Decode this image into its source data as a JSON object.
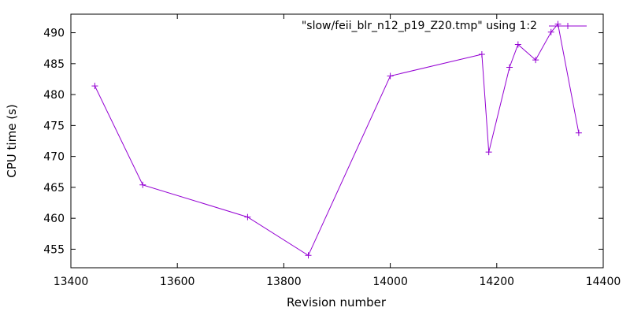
{
  "chart_data": {
    "type": "line",
    "xlabel": "Revision number",
    "ylabel": "CPU time (s)",
    "xlim": [
      13400,
      14400
    ],
    "ylim": [
      452,
      493
    ],
    "x_ticks": [
      13400,
      13600,
      13800,
      14000,
      14200,
      14400
    ],
    "y_ticks": [
      455,
      460,
      465,
      470,
      475,
      480,
      485,
      490
    ],
    "grid": false,
    "legend_position": "top-right",
    "series": [
      {
        "name": "\"slow/feii_blr_n12_p19_Z20.tmp\" using 1:2",
        "color": "#9400d3",
        "marker": "plus",
        "points": [
          {
            "x": 13445,
            "y": 481.4
          },
          {
            "x": 13535,
            "y": 465.4
          },
          {
            "x": 13732,
            "y": 460.2
          },
          {
            "x": 13846,
            "y": 454.0
          },
          {
            "x": 14000,
            "y": 483.0
          },
          {
            "x": 14172,
            "y": 486.5
          },
          {
            "x": 14185,
            "y": 470.7
          },
          {
            "x": 14224,
            "y": 484.4
          },
          {
            "x": 14240,
            "y": 488.1
          },
          {
            "x": 14273,
            "y": 485.6
          },
          {
            "x": 14302,
            "y": 490.1
          },
          {
            "x": 14315,
            "y": 491.4
          },
          {
            "x": 14354,
            "y": 473.8
          }
        ]
      }
    ]
  }
}
